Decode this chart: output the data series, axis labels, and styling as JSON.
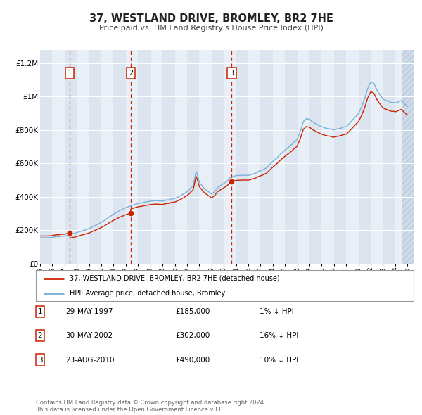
{
  "title": "37, WESTLAND DRIVE, BROMLEY, BR2 7HE",
  "subtitle": "Price paid vs. HM Land Registry's House Price Index (HPI)",
  "xlim_start": 1995.0,
  "xlim_end": 2025.5,
  "ylim_min": 0,
  "ylim_max": 1280000,
  "yticks": [
    0,
    200000,
    400000,
    600000,
    800000,
    1000000,
    1200000
  ],
  "ytick_labels": [
    "£0",
    "£200K",
    "£400K",
    "£600K",
    "£800K",
    "£1M",
    "£1.2M"
  ],
  "bg_color": "#ffffff",
  "plot_bg_color": "#e8eef5",
  "grid_color": "#ffffff",
  "hpi_color": "#7ab0d8",
  "price_color": "#cc2200",
  "sale_dates": [
    1997.41,
    2002.41,
    2010.65
  ],
  "sale_prices": [
    185000,
    302000,
    490000
  ],
  "sale_labels": [
    "1",
    "2",
    "3"
  ],
  "legend_price_label": "37, WESTLAND DRIVE, BROMLEY, BR2 7HE (detached house)",
  "legend_hpi_label": "HPI: Average price, detached house, Bromley",
  "footer1": "Contains HM Land Registry data © Crown copyright and database right 2024.",
  "footer2": "This data is licensed under the Open Government Licence v3.0.",
  "table_rows": [
    [
      "1",
      "29-MAY-1997",
      "£185,000",
      "1% ↓ HPI"
    ],
    [
      "2",
      "30-MAY-2002",
      "£302,000",
      "16% ↓ HPI"
    ],
    [
      "3",
      "23-AUG-2010",
      "£490,000",
      "10% ↓ HPI"
    ]
  ],
  "vspan_colors": [
    "#dce5ef",
    "#e8eff6"
  ]
}
